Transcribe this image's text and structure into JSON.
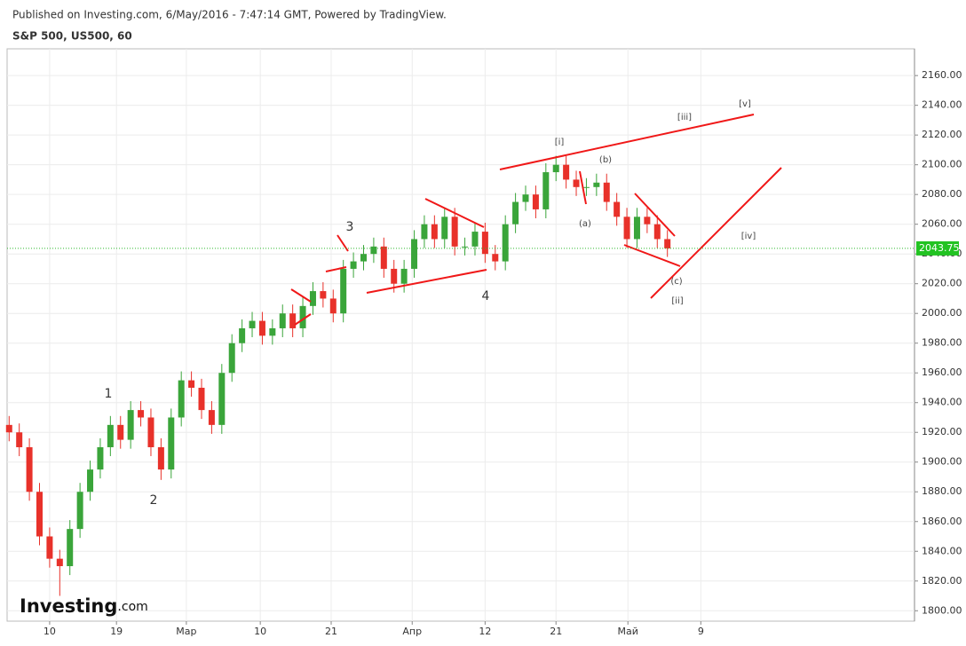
{
  "header": {
    "published": "Published on Investing.com, 6/May/2016 - 7:47:14 GMT, Powered by TradingView.",
    "symbol": "S&P 500, US500, 60"
  },
  "logo": {
    "brand": "Investing",
    "suffix": ".com"
  },
  "chart_data": {
    "type": "candlestick",
    "up_color": "#3aa53a",
    "down_color": "#e8312a",
    "grid": true,
    "x": [
      -4,
      -3,
      -2,
      -1,
      0,
      1,
      2,
      3,
      4,
      5,
      6,
      7,
      8,
      9,
      10,
      11,
      12,
      13,
      14,
      15,
      16,
      17,
      18,
      19,
      20,
      21,
      22,
      23,
      24,
      25,
      26,
      27,
      28,
      29,
      30,
      31,
      32,
      33,
      34,
      35,
      36,
      37,
      38,
      39,
      40,
      41,
      42,
      43,
      44,
      45,
      46,
      47,
      48,
      49,
      50,
      51,
      52,
      53,
      54,
      55,
      56,
      57,
      58,
      59,
      60,
      61
    ],
    "open": [
      1925,
      1920,
      1910,
      1880,
      1850,
      1835,
      1830,
      1855,
      1880,
      1895,
      1910,
      1925,
      1915,
      1935,
      1930,
      1910,
      1895,
      1930,
      1955,
      1950,
      1935,
      1925,
      1960,
      1980,
      1990,
      1995,
      1985,
      1990,
      2000,
      1990,
      2005,
      2015,
      2010,
      2000,
      2030,
      2035,
      2040,
      2045,
      2030,
      2020,
      2030,
      2050,
      2060,
      2050,
      2065,
      2045,
      2045,
      2055,
      2040,
      2035,
      2060,
      2075,
      2080,
      2070,
      2095,
      2100,
      2090,
      2085,
      2085,
      2088,
      2075,
      2065,
      2050,
      2065,
      2060,
      2050
    ],
    "high": [
      1931,
      1926,
      1916,
      1886,
      1856,
      1841,
      1861,
      1886,
      1901,
      1916,
      1931,
      1931,
      1941,
      1941,
      1936,
      1916,
      1936,
      1961,
      1961,
      1956,
      1941,
      1966,
      1986,
      1996,
      2001,
      2001,
      1996,
      2006,
      2006,
      2011,
      2021,
      2021,
      2016,
      2036,
      2041,
      2046,
      2051,
      2051,
      2036,
      2036,
      2056,
      2066,
      2066,
      2071,
      2071,
      2051,
      2061,
      2061,
      2046,
      2066,
      2081,
      2086,
      2086,
      2101,
      2106,
      2106,
      2096,
      2091,
      2094,
      2094,
      2081,
      2071,
      2071,
      2071,
      2066,
      2056
    ],
    "low": [
      1914,
      1904,
      1874,
      1844,
      1829,
      1810,
      1824,
      1849,
      1874,
      1889,
      1904,
      1909,
      1909,
      1924,
      1904,
      1888,
      1889,
      1924,
      1944,
      1929,
      1919,
      1919,
      1954,
      1974,
      1984,
      1979,
      1979,
      1984,
      1984,
      1984,
      1999,
      2004,
      1994,
      1994,
      2024,
      2029,
      2034,
      2024,
      2014,
      2014,
      2024,
      2044,
      2044,
      2044,
      2039,
      2039,
      2039,
      2034,
      2029,
      2029,
      2054,
      2069,
      2064,
      2064,
      2089,
      2084,
      2079,
      2079,
      2079,
      2069,
      2059,
      2044,
      2044,
      2054,
      2044,
      2038
    ],
    "close": [
      1920,
      1910,
      1880,
      1850,
      1835,
      1830,
      1855,
      1880,
      1895,
      1910,
      1925,
      1915,
      1935,
      1930,
      1910,
      1895,
      1930,
      1955,
      1950,
      1935,
      1925,
      1960,
      1980,
      1990,
      1995,
      1985,
      1990,
      2000,
      1990,
      2005,
      2015,
      2010,
      2000,
      2030,
      2035,
      2040,
      2045,
      2030,
      2020,
      2030,
      2050,
      2060,
      2050,
      2065,
      2045,
      2045,
      2055,
      2040,
      2035,
      2060,
      2075,
      2080,
      2070,
      2095,
      2100,
      2090,
      2085,
      2085,
      2088,
      2075,
      2065,
      2050,
      2065,
      2060,
      2050,
      2043.75
    ],
    "last_price": 2043.75,
    "xlim": [
      -4.2,
      85.4
    ],
    "xticks": [
      {
        "value": 0,
        "label": "10"
      },
      {
        "value": 6.6,
        "label": "19"
      },
      {
        "value": 13.5,
        "label": "Мар"
      },
      {
        "value": 20.8,
        "label": "10"
      },
      {
        "value": 27.8,
        "label": "21"
      },
      {
        "value": 35.8,
        "label": "Апр"
      },
      {
        "value": 43,
        "label": "12"
      },
      {
        "value": 50,
        "label": "21"
      },
      {
        "value": 57.1,
        "label": "Май"
      },
      {
        "value": 64.3,
        "label": "9"
      }
    ],
    "ylim": [
      1793,
      2178
    ],
    "yticks": [
      {
        "value": 1800,
        "label": "1800.00"
      },
      {
        "value": 1820,
        "label": "1820.00"
      },
      {
        "value": 1840,
        "label": "1840.00"
      },
      {
        "value": 1860,
        "label": "1860.00"
      },
      {
        "value": 1880,
        "label": "1880.00"
      },
      {
        "value": 1900,
        "label": "1900.00"
      },
      {
        "value": 1920,
        "label": "1920.00"
      },
      {
        "value": 1940,
        "label": "1940.00"
      },
      {
        "value": 1960,
        "label": "1960.00"
      },
      {
        "value": 1980,
        "label": "1980.00"
      },
      {
        "value": 2000,
        "label": "2000.00"
      },
      {
        "value": 2020,
        "label": "2020.00"
      },
      {
        "value": 2040,
        "label": "2040.00"
      },
      {
        "value": 2060,
        "label": "2060.00"
      },
      {
        "value": 2080,
        "label": "2080.00"
      },
      {
        "value": 2100,
        "label": "2100.00"
      },
      {
        "value": 2120,
        "label": "2120.00"
      },
      {
        "value": 2140,
        "label": "2140.00"
      },
      {
        "value": 2160,
        "label": "2160.00"
      }
    ],
    "annotations": [
      "1",
      "2",
      "3",
      "4",
      "[i]",
      "(a)",
      "(b)",
      "(c)",
      "[ii]",
      "[iii]",
      "[iv]",
      "[v]"
    ]
  }
}
